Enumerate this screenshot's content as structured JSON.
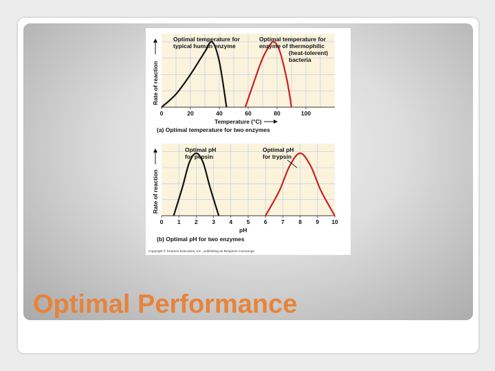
{
  "slide": {
    "title": "Optimal Performance"
  },
  "figure": {
    "credit": "Copyright © Pearson Education, Inc., publishing as Benjamin Cummings",
    "panel_a": {
      "ylabel": "Rate of reaction",
      "xlabel": "Temperature (°C)",
      "caption": "(a) Optimal temperature for two enzymes",
      "annotation_human": [
        "Optimal temperature for",
        "typical human enzyme"
      ],
      "annotation_thermo": [
        "Optimal temperature for",
        "enzyme of thermophilic",
        "(heat-tolerent)",
        "bacteria"
      ],
      "x_ticks": [
        "0",
        "20",
        "40",
        "60",
        "80",
        "100"
      ]
    },
    "panel_b": {
      "ylabel": "Rate of reaction",
      "xlabel": "pH",
      "caption": "(b) Optimal pH for two enzymes",
      "annotation_pepsin": [
        "Optimal pH",
        "for pepsin"
      ],
      "annotation_trypsin": [
        "Optimal pH",
        "for trypsin"
      ],
      "x_ticks": [
        "0",
        "1",
        "2",
        "3",
        "4",
        "5",
        "6",
        "7",
        "8",
        "9",
        "10"
      ]
    },
    "colors": {
      "human_curve": "#111111",
      "thermo_curve": "#cc1f1f",
      "pepsin_curve": "#111111",
      "trypsin_curve": "#cc1f1f",
      "plot_bg": "#fbf3dc",
      "grid": "#b7c8e8"
    }
  },
  "chart_data": [
    {
      "type": "line",
      "xlabel": "Temperature (°C)",
      "ylabel": "Rate of reaction",
      "xlim": [
        0,
        120
      ],
      "x_ticks": [
        0,
        20,
        40,
        60,
        80,
        100
      ],
      "series": [
        {
          "x": [
            0,
            10,
            20,
            30,
            35,
            40,
            45
          ],
          "y": [
            0,
            0.2,
            0.5,
            0.85,
            1.0,
            0.7,
            0
          ]
        },
        {
          "x": [
            58,
            65,
            70,
            75,
            78,
            82,
            87,
            90
          ],
          "y": [
            0,
            0.45,
            0.75,
            0.95,
            1.0,
            0.85,
            0.4,
            0
          ]
        }
      ]
    },
    {
      "type": "line",
      "xlabel": "pH",
      "ylabel": "Rate of reaction",
      "xlim": [
        0,
        10
      ],
      "x_ticks": [
        0,
        1,
        2,
        3,
        4,
        5,
        6,
        7,
        8,
        9,
        10
      ],
      "series": [
        {
          "x": [
            0.7,
            1.2,
            1.6,
            2.0,
            2.4,
            2.8,
            3.3
          ],
          "y": [
            0,
            0.45,
            0.85,
            1.0,
            0.85,
            0.45,
            0
          ]
        },
        {
          "x": [
            6.0,
            6.8,
            7.4,
            8.0,
            8.6,
            9.2,
            10.0
          ],
          "y": [
            0,
            0.4,
            0.8,
            1.0,
            0.8,
            0.4,
            0
          ]
        }
      ]
    }
  ]
}
